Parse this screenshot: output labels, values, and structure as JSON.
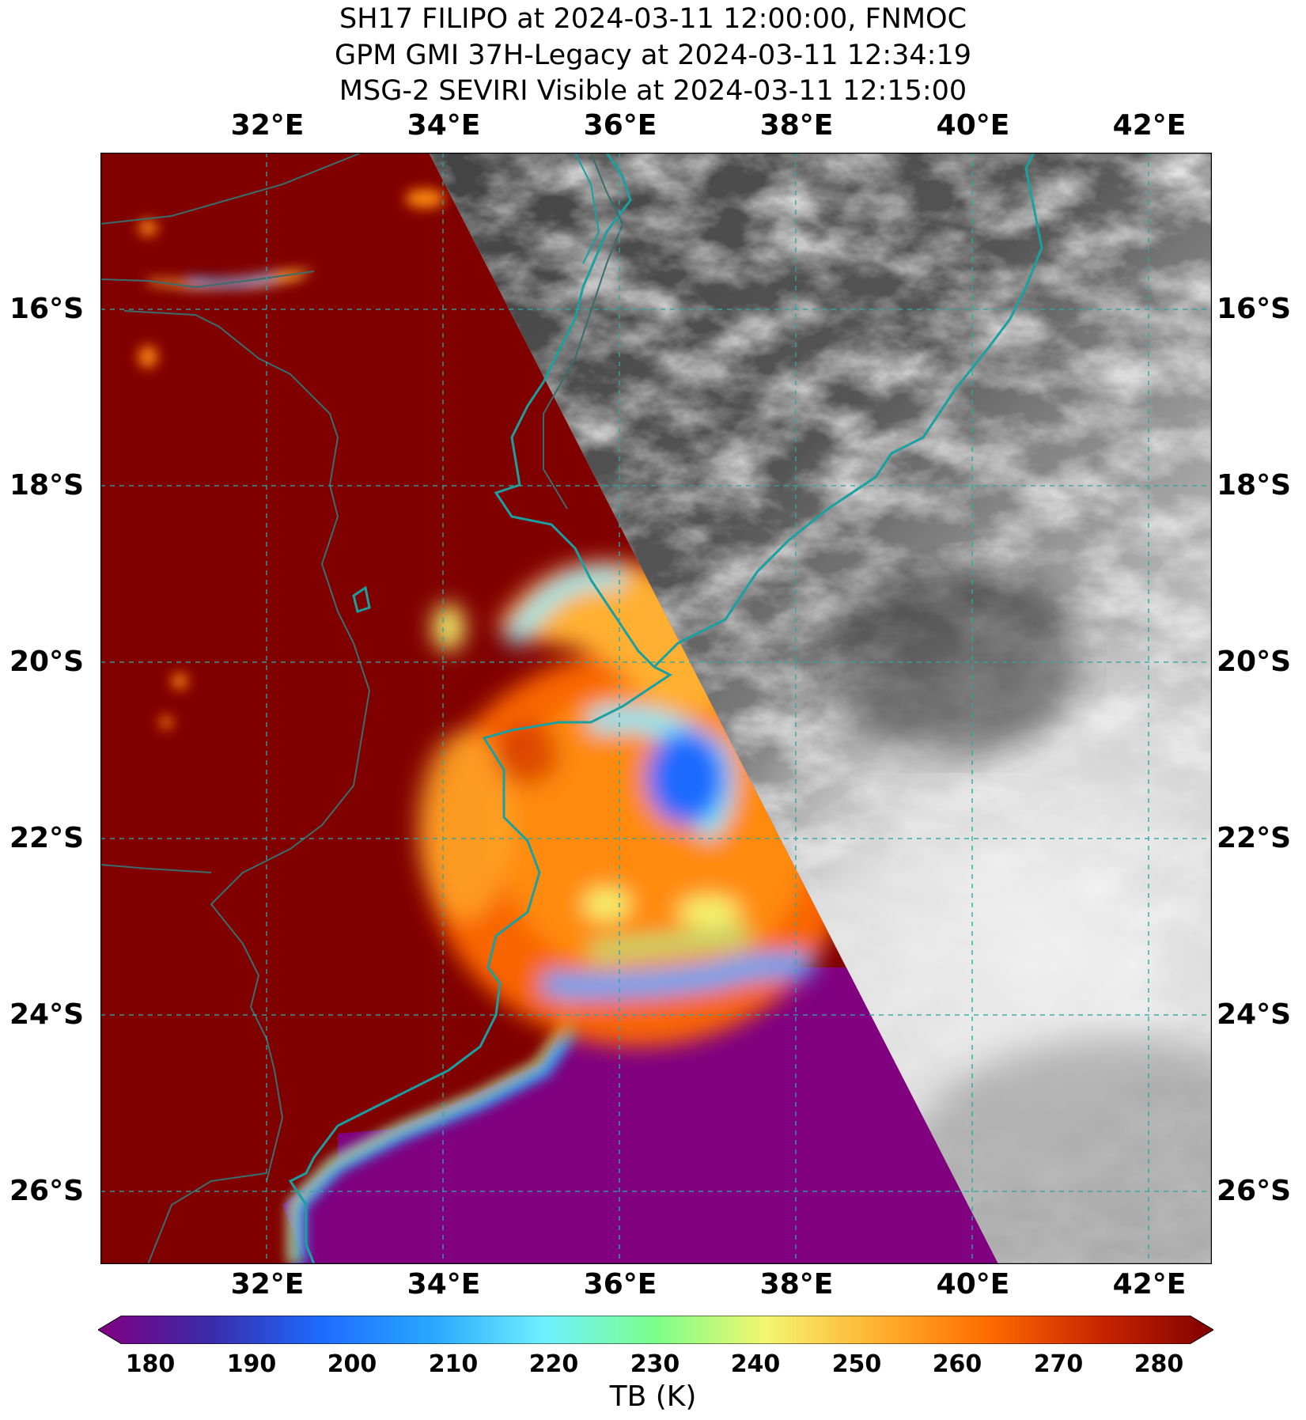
{
  "title": {
    "line1": "SH17 FILIPO at 2024-03-11 12:00:00, FNMOC",
    "line2": "GPM GMI 37H-Legacy at 2024-03-11 12:34:19",
    "line3": "MSG-2 SEVIRI Visible at 2024-03-11 12:15:00"
  },
  "map": {
    "lon_range": [
      30.2,
      42.8
    ],
    "lat_range": [
      -26.8,
      -14.2
    ],
    "lon_ticks": [
      "32°E",
      "34°E",
      "36°E",
      "38°E",
      "40°E",
      "42°E"
    ],
    "lat_ticks": [
      "16°S",
      "18°S",
      "20°S",
      "22°S",
      "24°S",
      "26°S"
    ],
    "gridline_color": "#2aa7a7",
    "coastline_color": "#1aa0a0",
    "border_color": "#3a6e6e",
    "microwave_warm_color": "#800000",
    "microwave_cold_color": "#800080",
    "storm_center": {
      "lon": 37.2,
      "lat": -22.2
    }
  },
  "colorbar": {
    "label": "TB (K)",
    "ticks": [
      "180",
      "190",
      "200",
      "210",
      "220",
      "230",
      "240",
      "250",
      "260",
      "270",
      "280"
    ],
    "colormap": "rainbow-turbo",
    "range": [
      180,
      280
    ]
  }
}
